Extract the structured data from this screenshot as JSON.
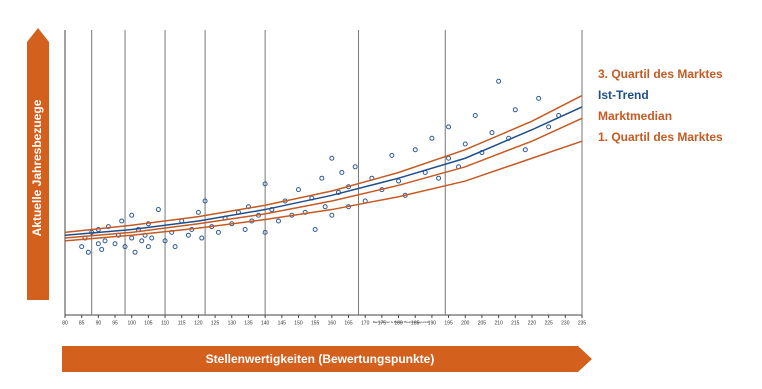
{
  "chart_data": {
    "type": "scatter",
    "xlabel": "Baumgartner & Partner Bewertungspunkte",
    "ylabel_arrow": "Aktuelle Jahresbezuege",
    "xlabel_arrow": "Stellenwertigkeiten (Bewertungspunkte)",
    "arrow_color": "#d4601e",
    "xlim": [
      80,
      235
    ],
    "ylim": [
      0,
      100
    ],
    "xticks": [
      80,
      85,
      90,
      95,
      100,
      105,
      110,
      115,
      120,
      125,
      130,
      135,
      140,
      145,
      150,
      155,
      160,
      165,
      170,
      175,
      180,
      185,
      190,
      195,
      200,
      205,
      210,
      215,
      220,
      225,
      230,
      235
    ],
    "vlines": [
      88,
      98,
      110,
      122,
      140,
      168,
      194
    ],
    "points": {
      "color": "#2e5a9a",
      "x": [
        85,
        86,
        87,
        88,
        90,
        90,
        91,
        92,
        93,
        95,
        96,
        97,
        98,
        100,
        100,
        101,
        102,
        103,
        104,
        105,
        105,
        106,
        108,
        110,
        112,
        113,
        115,
        117,
        118,
        120,
        121,
        122,
        124,
        126,
        128,
        130,
        132,
        134,
        135,
        136,
        138,
        140,
        140,
        142,
        144,
        146,
        148,
        150,
        152,
        154,
        155,
        157,
        158,
        160,
        160,
        162,
        163,
        165,
        165,
        167,
        170,
        172,
        175,
        178,
        180,
        182,
        185,
        188,
        190,
        192,
        195,
        195,
        198,
        200,
        203,
        205,
        208,
        210,
        213,
        215,
        218,
        222,
        225,
        228
      ],
      "y": [
        24,
        27,
        22,
        29,
        25,
        30,
        23,
        26,
        31,
        25,
        28,
        33,
        24,
        27,
        35,
        22,
        30,
        26,
        28,
        32,
        24,
        27,
        37,
        26,
        29,
        24,
        33,
        28,
        30,
        36,
        27,
        40,
        31,
        29,
        34,
        32,
        36,
        30,
        38,
        33,
        35,
        46,
        29,
        37,
        33,
        40,
        35,
        44,
        36,
        41,
        30,
        48,
        38,
        55,
        35,
        43,
        50,
        38,
        45,
        52,
        40,
        48,
        44,
        56,
        47,
        42,
        58,
        50,
        62,
        48,
        55,
        66,
        52,
        60,
        70,
        57,
        64,
        82,
        62,
        72,
        58,
        76,
        66,
        70
      ]
    },
    "line_x": [
      80,
      100,
      120,
      140,
      160,
      180,
      200,
      220,
      235
    ],
    "series": [
      {
        "name": "3. Quartil des Marktes",
        "color": "#c55a22",
        "values": [
          29,
          31.5,
          34.5,
          38.5,
          43.5,
          50,
          58,
          68,
          77
        ]
      },
      {
        "name": "Ist-Trend",
        "color": "#1f4e8c",
        "values": [
          28,
          30,
          33,
          37,
          42,
          48,
          55,
          65,
          73
        ]
      },
      {
        "name": "Marktmedian",
        "color": "#c55a22",
        "values": [
          27,
          29,
          32,
          35.5,
          40,
          45.5,
          52,
          61,
          69
        ]
      },
      {
        "name": "1. Quartil des Marktes",
        "color": "#c55a22",
        "values": [
          26,
          28,
          30.5,
          33.5,
          37,
          41.5,
          47,
          55,
          61
        ]
      }
    ]
  }
}
